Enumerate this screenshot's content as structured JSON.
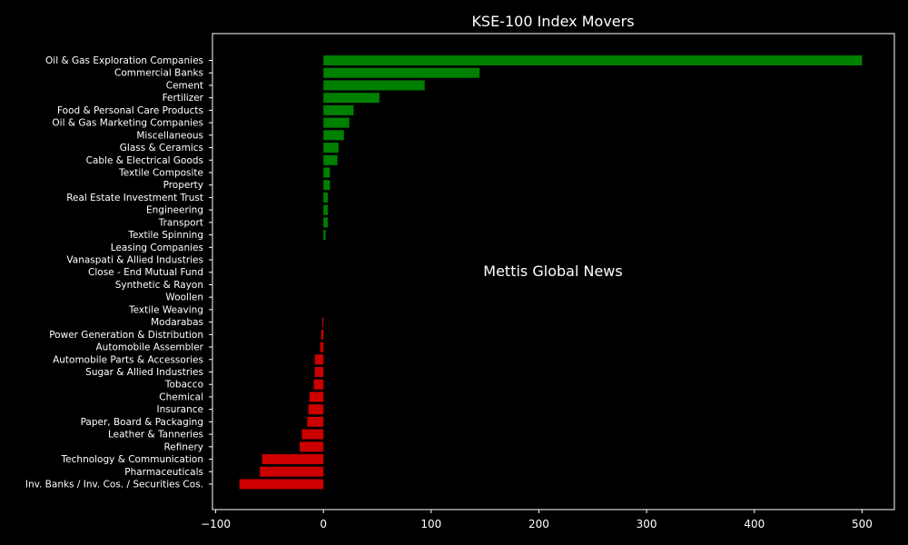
{
  "chart_data": {
    "type": "bar",
    "orientation": "horizontal",
    "title": "KSE-100 Index Movers",
    "watermark": "Mettis Global News",
    "colors": {
      "positive": "#008000",
      "negative": "#cc0000",
      "background": "#000000",
      "text": "#ffffff",
      "watermark": "#d2691e"
    },
    "xlim": [
      -103,
      530
    ],
    "xticks": [
      -100,
      0,
      100,
      200,
      300,
      400,
      500
    ],
    "xtick_labels": [
      "−100",
      "0",
      "100",
      "200",
      "300",
      "400",
      "500"
    ],
    "grid": false,
    "categories": [
      "Oil & Gas Exploration Companies",
      "Commercial Banks",
      "Cement",
      "Fertilizer",
      "Food & Personal Care Products",
      "Oil & Gas Marketing Companies",
      "Miscellaneous",
      "Glass & Ceramics",
      "Cable & Electrical Goods",
      "Textile Composite",
      "Property",
      "Real Estate Investment Trust",
      "Engineering",
      "Transport",
      "Textile Spinning",
      "Leasing Companies",
      "Vanaspati & Allied Industries",
      "Close - End Mutual Fund",
      "Synthetic & Rayon",
      "Woollen",
      "Textile Weaving",
      "Modarabas",
      "Power Generation & Distribution",
      "Automobile Assembler",
      "Automobile Parts & Accessories",
      "Sugar & Allied Industries",
      "Tobacco",
      "Chemical",
      "Insurance",
      "Paper, Board & Packaging",
      "Leather & Tanneries",
      "Refinery",
      "Technology & Communication",
      "Pharmaceuticals",
      "Inv. Banks / Inv. Cos. / Securities Cos."
    ],
    "values": [
      500,
      145,
      94,
      52,
      28,
      24,
      19,
      14,
      13,
      6,
      6,
      4,
      4,
      4,
      2,
      0,
      0,
      0,
      0,
      0,
      0,
      -1,
      -2,
      -3,
      -8,
      -8,
      -9,
      -13,
      -14,
      -15,
      -20,
      -22,
      -57,
      -59,
      -78
    ]
  }
}
